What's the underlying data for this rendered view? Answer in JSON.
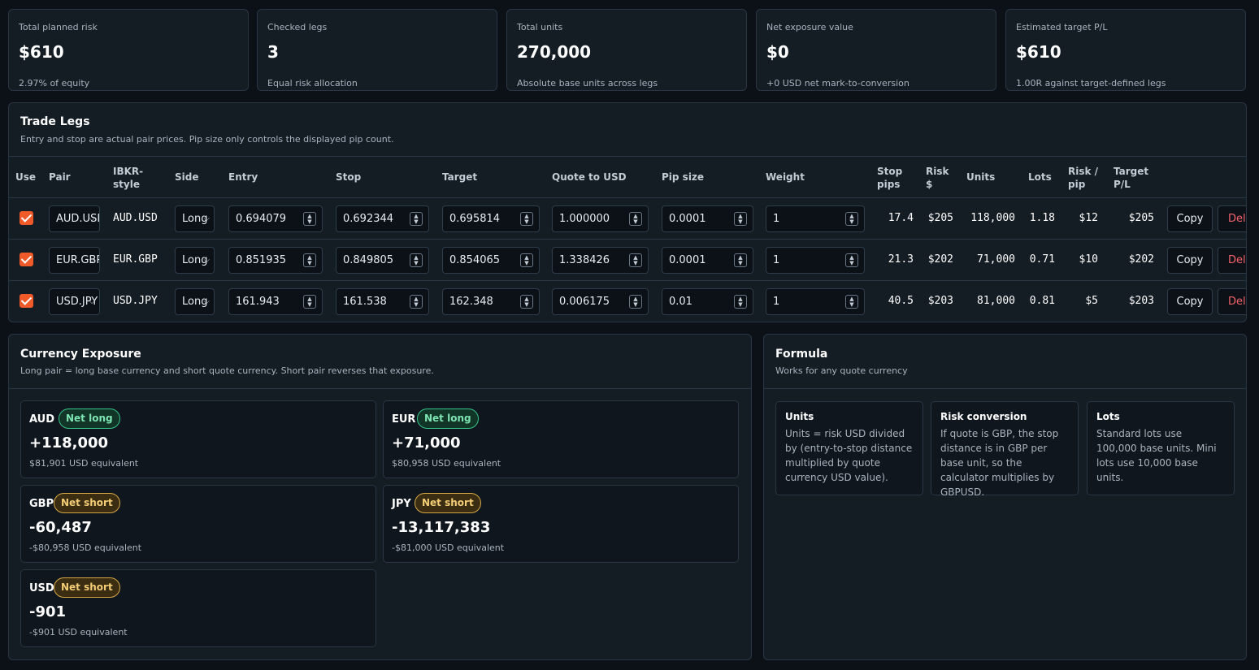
{
  "stats": [
    {
      "label": "Total planned risk",
      "value": "$610",
      "sub": "2.97% of equity"
    },
    {
      "label": "Checked legs",
      "value": "3",
      "sub": "Equal risk allocation"
    },
    {
      "label": "Total units",
      "value": "270,000",
      "sub": "Absolute base units across legs"
    },
    {
      "label": "Net exposure value",
      "value": "$0",
      "sub": "+0 USD net mark-to-conversion"
    },
    {
      "label": "Estimated target P/L",
      "value": "$610",
      "sub": "1.00R against target-defined legs"
    }
  ],
  "legs": {
    "title": "Trade Legs",
    "desc": "Entry and stop are actual pair prices. Pip size only controls the displayed pip count.",
    "headers": {
      "use": "Use",
      "pair": "Pair",
      "ibkr1": "IBKR-",
      "ibkr2": "style",
      "side": "Side",
      "entry": "Entry",
      "stop": "Stop",
      "target": "Target",
      "quote": "Quote to USD",
      "pip": "Pip size",
      "weight": "Weight",
      "stoppips1": "Stop",
      "stoppips2": "pips",
      "risk1": "Risk",
      "risk2": "$",
      "units": "Units",
      "lots": "Lots",
      "riskpip1": "Risk /",
      "riskpip2": "pip",
      "target_pl1": "Target",
      "target_pl2": "P/L"
    },
    "copy_label": "Copy",
    "delete_label": "Del",
    "rows": [
      {
        "checked": true,
        "pair": "AUD.USD",
        "ibkr": "AUD.USD",
        "side": "Long",
        "entry": "0.694079",
        "stop": "0.692344",
        "target": "0.695814",
        "quote": "1.000000",
        "pip": "0.0001",
        "weight": "1",
        "stop_pips": "17.4",
        "risk": "$205",
        "units": "118,000",
        "lots": "1.18",
        "risk_pip": "$12",
        "target_pl": "$205"
      },
      {
        "checked": true,
        "pair": "EUR.GBP",
        "ibkr": "EUR.GBP",
        "side": "Long",
        "entry": "0.851935",
        "stop": "0.849805",
        "target": "0.854065",
        "quote": "1.338426",
        "pip": "0.0001",
        "weight": "1",
        "stop_pips": "21.3",
        "risk": "$202",
        "units": "71,000",
        "lots": "0.71",
        "risk_pip": "$10",
        "target_pl": "$202"
      },
      {
        "checked": true,
        "pair": "USD.JPY",
        "ibkr": "USD.JPY",
        "side": "Long",
        "entry": "161.943",
        "stop": "161.538",
        "target": "162.348",
        "quote": "0.006175",
        "pip": "0.01",
        "weight": "1",
        "stop_pips": "40.5",
        "risk": "$203",
        "units": "81,000",
        "lots": "0.81",
        "risk_pip": "$5",
        "target_pl": "$203"
      }
    ]
  },
  "exposure": {
    "title": "Currency Exposure",
    "desc": "Long pair = long base currency and short quote currency. Short pair reverses that exposure.",
    "items": [
      {
        "currency": "AUD",
        "badge": "Net long",
        "value": "+118,000",
        "sub": "$81,901 USD equivalent"
      },
      {
        "currency": "EUR",
        "badge": "Net long",
        "value": "+71,000",
        "sub": "$80,958 USD equivalent"
      },
      {
        "currency": "GBP",
        "badge": "Net short",
        "value": "-60,487",
        "sub": "-$80,958 USD equivalent"
      },
      {
        "currency": "JPY",
        "badge": "Net short",
        "value": "-13,117,383",
        "sub": "-$81,000 USD equivalent"
      },
      {
        "currency": "USD",
        "badge": "Net short",
        "value": "-901",
        "sub": "-$901 USD equivalent"
      }
    ]
  },
  "formula": {
    "title": "Formula",
    "desc": "Works for any quote currency",
    "cards": [
      {
        "title": "Units",
        "text": "Units = risk USD divided by (entry-to-stop distance multiplied by quote currency USD value)."
      },
      {
        "title": "Risk conversion",
        "text": "If quote is GBP, the stop distance is in GBP per base unit, so the calculator multiplies by GBPUSD."
      },
      {
        "title": "Lots",
        "text": "Standard lots use 100,000 base units. Mini lots use 10,000 base units."
      }
    ]
  },
  "colors": {
    "accent": "#f05a28",
    "long": "#37c48a",
    "short": "#d6a845",
    "danger": "#f2626b"
  }
}
